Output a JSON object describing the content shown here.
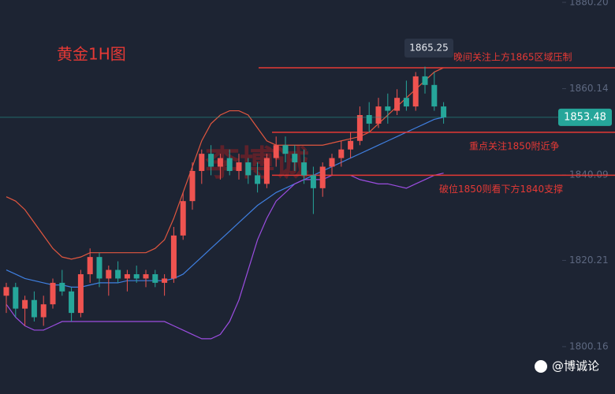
{
  "chart_data": {
    "type": "candlestick",
    "title": "黄金1H图",
    "watermark": "李博诚",
    "credit": "@博诚论",
    "ylim": [
      1789.15,
      1880.75
    ],
    "yticks": [
      {
        "value": 1880.2,
        "label": "1880.20"
      },
      1860.14,
      1840.09,
      1820.21,
      1800.16
    ],
    "up_color": "#ef5350",
    "down_color": "#26a69a",
    "ohlc": [
      [
        1812,
        1815,
        1808,
        1814
      ],
      [
        1814,
        1815,
        1807,
        1809
      ],
      [
        1809,
        1812,
        1805,
        1811
      ],
      [
        1811,
        1813,
        1806,
        1807
      ],
      [
        1807,
        1812,
        1805,
        1810
      ],
      [
        1810,
        1816,
        1809,
        1815
      ],
      [
        1815,
        1818,
        1812,
        1813
      ],
      [
        1813,
        1814,
        1806,
        1808
      ],
      [
        1808,
        1818,
        1807,
        1817
      ],
      [
        1817,
        1823,
        1815,
        1821
      ],
      [
        1821,
        1822,
        1814,
        1816
      ],
      [
        1816,
        1819,
        1812,
        1818
      ],
      [
        1818,
        1820,
        1815,
        1816
      ],
      [
        1816,
        1818,
        1813,
        1817
      ],
      [
        1817,
        1819,
        1815,
        1816
      ],
      [
        1816,
        1818,
        1814,
        1817
      ],
      [
        1817,
        1818,
        1814,
        1815
      ],
      [
        1815,
        1817,
        1812,
        1816
      ],
      [
        1816,
        1828,
        1815,
        1826
      ],
      [
        1826,
        1836,
        1825,
        1834
      ],
      [
        1834,
        1843,
        1832,
        1841
      ],
      [
        1841,
        1846,
        1838,
        1845
      ],
      [
        1845,
        1847,
        1840,
        1842
      ],
      [
        1842,
        1845,
        1839,
        1844
      ],
      [
        1844,
        1846,
        1840,
        1841
      ],
      [
        1841,
        1845,
        1839,
        1843
      ],
      [
        1843,
        1844,
        1838,
        1840
      ],
      [
        1840,
        1843,
        1836,
        1838
      ],
      [
        1838,
        1845,
        1837,
        1844
      ],
      [
        1844,
        1849,
        1842,
        1847
      ],
      [
        1847,
        1849,
        1843,
        1845
      ],
      [
        1845,
        1847,
        1841,
        1843
      ],
      [
        1843,
        1846,
        1838,
        1840
      ],
      [
        1840,
        1842,
        1831,
        1837
      ],
      [
        1837,
        1843,
        1835,
        1842
      ],
      [
        1842,
        1845,
        1840,
        1844
      ],
      [
        1844,
        1848,
        1842,
        1846
      ],
      [
        1846,
        1850,
        1844,
        1848
      ],
      [
        1848,
        1856,
        1847,
        1854
      ],
      [
        1854,
        1857,
        1850,
        1852
      ],
      [
        1852,
        1858,
        1851,
        1856
      ],
      [
        1856,
        1859,
        1852,
        1855
      ],
      [
        1855,
        1860,
        1854,
        1858
      ],
      [
        1858,
        1862,
        1855,
        1856
      ],
      [
        1856,
        1864,
        1855,
        1863
      ],
      [
        1863,
        1865.25,
        1859,
        1861
      ],
      [
        1861,
        1864,
        1855,
        1856
      ],
      [
        1856,
        1857,
        1852,
        1853.48
      ]
    ],
    "series": [
      {
        "color": "#e0563f",
        "values": [
          1835,
          1834,
          1832,
          1829,
          1826,
          1823,
          1821,
          1820.5,
          1821,
          1822,
          1822,
          1822,
          1822,
          1822,
          1822,
          1822,
          1823,
          1825,
          1830,
          1836,
          1842,
          1848,
          1852,
          1854,
          1855,
          1855,
          1854,
          1851,
          1848,
          1847,
          1847,
          1847,
          1847,
          1847,
          1847,
          1847.5,
          1848,
          1848.5,
          1849,
          1850,
          1852,
          1854,
          1856,
          1858,
          1860,
          1862,
          1864,
          1865
        ]
      },
      {
        "color": "#3f7fe0",
        "values": [
          1818,
          1817,
          1816,
          1815.5,
          1815,
          1814.5,
          1814.5,
          1814,
          1814,
          1814.5,
          1815,
          1815,
          1815,
          1815.5,
          1815.5,
          1815.5,
          1815.5,
          1815.5,
          1816,
          1817,
          1819,
          1821,
          1823,
          1825,
          1827,
          1829,
          1831,
          1833,
          1834.5,
          1836,
          1837,
          1838,
          1839,
          1840,
          1841,
          1842,
          1843,
          1844,
          1845,
          1846,
          1847,
          1848,
          1849,
          1850,
          1851,
          1852,
          1853,
          1853.5
        ]
      },
      {
        "color": "#9b4de0",
        "values": [
          1810,
          1807,
          1805,
          1804,
          1804,
          1805,
          1806,
          1806,
          1806,
          1806,
          1806,
          1806,
          1806,
          1806,
          1806,
          1806,
          1806,
          1806,
          1805,
          1804,
          1803,
          1802,
          1802,
          1803,
          1806,
          1811,
          1818,
          1825,
          1830,
          1834,
          1836,
          1838,
          1839,
          1839,
          1839,
          1840,
          1840,
          1840,
          1839,
          1838.5,
          1838,
          1838,
          1837.5,
          1837,
          1838,
          1839,
          1840,
          1840.5
        ]
      }
    ],
    "levels": [
      {
        "value": 1865,
        "color": "#e53935",
        "text": "晚间关注上方1865区域压制"
      },
      {
        "value": 1850,
        "color": "#e53935",
        "text": "重点关注1850附近争"
      },
      {
        "value": 1840,
        "color": "#e53935",
        "text": "破位1850则看下方1840支撑"
      }
    ],
    "price_color": "#26a69a"
  }
}
